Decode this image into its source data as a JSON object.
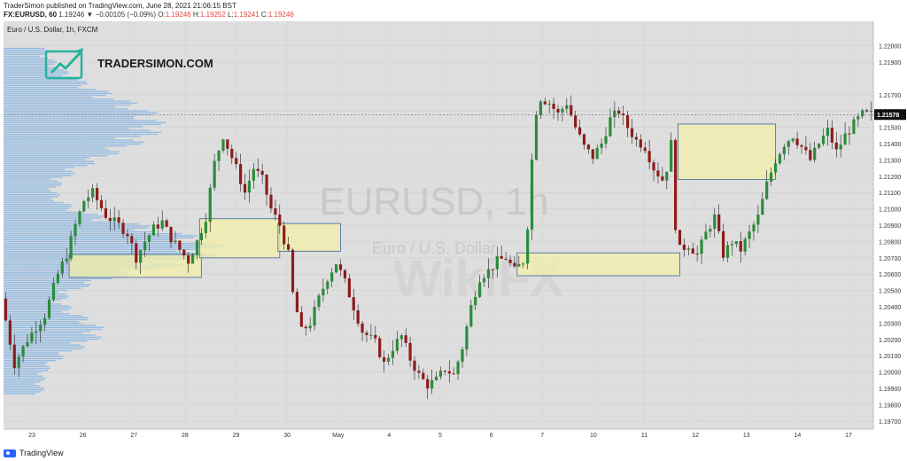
{
  "header": {
    "published_line": "TraderSimon published on TradingView.com, June 28, 2021 21:06:15 BST",
    "symbol_line": "FX:EURUSD, 60",
    "last": "1.19246",
    "change": "▼ −0.00105 (−0.09%)",
    "o_label": "O:",
    "o": "1.19246",
    "h_label": "H:",
    "h": "1.19252",
    "l_label": "L:",
    "l": "1.19241",
    "c_label": "C:",
    "c": "1.19246"
  },
  "legend": "Euro / U.S. Dollar, 1h, FXCM",
  "brand": {
    "name": "TRADERSIMON.COM"
  },
  "watermark": {
    "symbol": "EURUSD, 1h",
    "name": "Euro / U.S. Dollar",
    "overlay": "WikiFX"
  },
  "footer": {
    "label": "TradingView"
  },
  "colors": {
    "bg": "#dedede",
    "up": "#2a8c3a",
    "down": "#8e1b1b",
    "wick": "#222222",
    "zone_fill": "#f3efa8",
    "zone_stroke": "#5a7fa8",
    "profile": "#8ab7e3",
    "price_tag_bg": "#111111",
    "brand_teal": "#27b39c"
  },
  "chart_data": {
    "type": "candlestick",
    "title": "Euro / U.S. Dollar, 1h, FXCM",
    "current_price_label": "1.21578",
    "ylim": [
      1.1965,
      1.2215
    ],
    "y_ticks": [
      "1.22000",
      "1.21900",
      "1.21700",
      "1.21600",
      "1.21500",
      "1.21400",
      "1.21300",
      "1.21200",
      "1.21100",
      "1.21000",
      "1.20900",
      "1.20800",
      "1.20700",
      "1.20600",
      "1.20500",
      "1.20400",
      "1.20300",
      "1.20200",
      "1.20100",
      "1.20000",
      "1.19900",
      "1.19800",
      "1.19700"
    ],
    "x_ticks": [
      "23",
      "26",
      "27",
      "28",
      "29",
      "30",
      "May",
      "4",
      "5",
      "6",
      "7",
      "10",
      "11",
      "12",
      "13",
      "14",
      "17"
    ],
    "price_path": [
      [
        0,
        1.2045
      ],
      [
        3,
        1.2005
      ],
      [
        6,
        1.202
      ],
      [
        10,
        1.2035
      ],
      [
        13,
        1.206
      ],
      [
        15,
        1.2072
      ],
      [
        17,
        1.209
      ],
      [
        19,
        1.2105
      ],
      [
        21,
        1.211
      ],
      [
        24,
        1.2096
      ],
      [
        27,
        1.209
      ],
      [
        29,
        1.2085
      ],
      [
        31,
        1.207
      ],
      [
        33,
        1.208
      ],
      [
        35,
        1.2088
      ],
      [
        37,
        1.2092
      ],
      [
        39,
        1.2082
      ],
      [
        41,
        1.2075
      ],
      [
        43,
        1.2068
      ],
      [
        45,
        1.208
      ],
      [
        47,
        1.2095
      ],
      [
        49,
        1.2128
      ],
      [
        51,
        1.2145
      ],
      [
        52,
        1.2138
      ],
      [
        54,
        1.2125
      ],
      [
        56,
        1.211
      ],
      [
        58,
        1.2125
      ],
      [
        60,
        1.2118
      ],
      [
        62,
        1.21
      ],
      [
        64,
        1.209
      ],
      [
        66,
        1.2072
      ],
      [
        67,
        1.2048
      ],
      [
        69,
        1.2025
      ],
      [
        71,
        1.203
      ],
      [
        73,
        1.2045
      ],
      [
        75,
        1.2058
      ],
      [
        77,
        1.2067
      ],
      [
        79,
        1.2055
      ],
      [
        81,
        1.204
      ],
      [
        83,
        1.2025
      ],
      [
        86,
        1.2018
      ],
      [
        88,
        1.2005
      ],
      [
        90,
        1.2015
      ],
      [
        92,
        1.2022
      ],
      [
        94,
        1.2008
      ],
      [
        96,
        1.1998
      ],
      [
        98,
        1.1992
      ],
      [
        100,
        1.1995
      ],
      [
        102,
        1.2002
      ],
      [
        104,
        1.1998
      ],
      [
        106,
        1.2015
      ],
      [
        108,
        1.204
      ],
      [
        110,
        1.2058
      ],
      [
        112,
        1.2062
      ],
      [
        114,
        1.2068
      ],
      [
        116,
        1.207
      ],
      [
        118,
        1.2062
      ],
      [
        120,
        1.2068
      ],
      [
        121,
        1.209
      ],
      [
        122,
        1.213
      ],
      [
        123,
        1.216
      ],
      [
        124,
        1.2168
      ],
      [
        126,
        1.2165
      ],
      [
        128,
        1.2158
      ],
      [
        130,
        1.2165
      ],
      [
        132,
        1.215
      ],
      [
        134,
        1.2138
      ],
      [
        136,
        1.2132
      ],
      [
        138,
        1.214
      ],
      [
        140,
        1.2155
      ],
      [
        142,
        1.216
      ],
      [
        144,
        1.215
      ],
      [
        146,
        1.2142
      ],
      [
        148,
        1.2138
      ],
      [
        150,
        1.2125
      ],
      [
        152,
        1.2118
      ],
      [
        153,
        1.2125
      ],
      [
        154,
        1.214
      ],
      [
        155,
        1.209
      ],
      [
        156,
        1.2075
      ],
      [
        158,
        1.2078
      ],
      [
        160,
        1.2072
      ],
      [
        162,
        1.2085
      ],
      [
        164,
        1.2095
      ],
      [
        166,
        1.2072
      ],
      [
        168,
        1.208
      ],
      [
        170,
        1.2075
      ],
      [
        172,
        1.2085
      ],
      [
        174,
        1.2095
      ],
      [
        176,
        1.2115
      ],
      [
        178,
        1.213
      ],
      [
        180,
        1.214
      ],
      [
        182,
        1.2145
      ],
      [
        184,
        1.2138
      ],
      [
        186,
        1.213
      ],
      [
        188,
        1.214
      ],
      [
        190,
        1.2148
      ],
      [
        192,
        1.2135
      ],
      [
        194,
        1.2145
      ],
      [
        196,
        1.2152
      ],
      [
        198,
        1.2158
      ]
    ],
    "zones": [
      {
        "x0": 15,
        "x1": 45,
        "y0": 1.2058,
        "y1": 1.2072
      },
      {
        "x0": 45,
        "x1": 63,
        "y0": 1.207,
        "y1": 1.2094
      },
      {
        "x0": 63,
        "x1": 77,
        "y0": 1.2074,
        "y1": 1.2091
      },
      {
        "x0": 118,
        "x1": 155,
        "y0": 1.2059,
        "y1": 1.2073
      },
      {
        "x0": 155,
        "x1": 177,
        "y0": 1.2118,
        "y1": 1.2152
      }
    ],
    "volume_profile": {
      "side": "left"
    }
  }
}
